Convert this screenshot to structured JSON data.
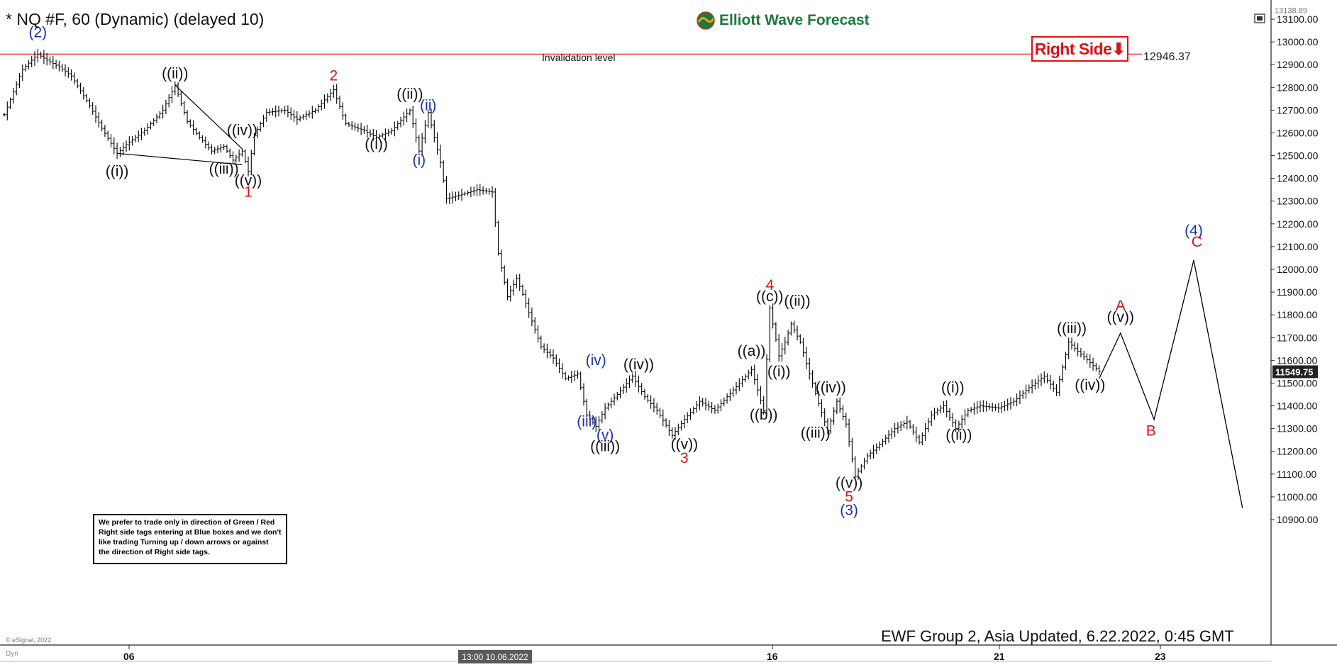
{
  "header": {
    "title": "* NQ #F, 60 (Dynamic) (delayed 10)",
    "logo_text": "Elliott Wave Forecast",
    "right_side_label": "Right Side⬇",
    "invalidation_label": "Invalidation level",
    "invalidation_value": "12946.37",
    "footer": "EWF Group 2, Asia Updated, 6.22.2022, 0:45 GMT",
    "esignal": "© eSignal, 2022",
    "dyn": "Dyn",
    "date_badge": "13:00 10.06.2022",
    "note": "We prefer to trade only in direction of Green / Red Right side tags entering at Blue boxes and we don't like trading Turning up / down arrows or against the direction of Right side tags."
  },
  "colors": {
    "background": "#ffffff",
    "bars": "#000000",
    "invalidation_line": "#e01010",
    "wave_black": "#111111",
    "wave_red": "#e01010",
    "wave_blue": "#1a2fb0",
    "logo_green": "#1a7a3a"
  },
  "chart_data": {
    "type": "bar",
    "y_axis": {
      "ticks": [
        13100,
        13000,
        12900,
        12800,
        12700,
        12600,
        12500,
        12400,
        12300,
        12200,
        12100,
        12000,
        11900,
        11800,
        11700,
        11600,
        11500,
        11400,
        11300,
        11200,
        11100,
        11000,
        10900
      ],
      "top_label": "13138.89",
      "last_price": "11549.75",
      "ylim": [
        10860,
        13160
      ]
    },
    "x_axis": {
      "ticks": [
        "06",
        "16",
        "21",
        "23"
      ]
    },
    "invalidation_level": 12946.37,
    "price_path": [
      [
        0,
        12680
      ],
      [
        6,
        12880
      ],
      [
        11,
        12946
      ],
      [
        14,
        12920
      ],
      [
        18,
        12890
      ],
      [
        22,
        12850
      ],
      [
        28,
        12720
      ],
      [
        32,
        12620
      ],
      [
        37,
        12510
      ],
      [
        41,
        12560
      ],
      [
        46,
        12610
      ],
      [
        52,
        12700
      ],
      [
        56,
        12810
      ],
      [
        60,
        12650
      ],
      [
        64,
        12580
      ],
      [
        68,
        12520
      ],
      [
        72,
        12540
      ],
      [
        75,
        12480
      ],
      [
        78,
        12520
      ],
      [
        80,
        12430
      ],
      [
        82,
        12590
      ],
      [
        86,
        12690
      ],
      [
        92,
        12700
      ],
      [
        96,
        12660
      ],
      [
        102,
        12700
      ],
      [
        108,
        12790
      ],
      [
        112,
        12640
      ],
      [
        118,
        12610
      ],
      [
        122,
        12580
      ],
      [
        127,
        12610
      ],
      [
        133,
        12700
      ],
      [
        136,
        12520
      ],
      [
        139,
        12690
      ],
      [
        143,
        12470
      ],
      [
        145,
        12310
      ],
      [
        150,
        12330
      ],
      [
        155,
        12350
      ],
      [
        160,
        12340
      ],
      [
        162,
        12070
      ],
      [
        165,
        11880
      ],
      [
        168,
        11960
      ],
      [
        170,
        11890
      ],
      [
        172,
        11810
      ],
      [
        176,
        11660
      ],
      [
        180,
        11610
      ],
      [
        184,
        11520
      ],
      [
        188,
        11540
      ],
      [
        191,
        11360
      ],
      [
        194,
        11310
      ],
      [
        197,
        11390
      ],
      [
        201,
        11450
      ],
      [
        206,
        11530
      ],
      [
        210,
        11440
      ],
      [
        214,
        11380
      ],
      [
        219,
        11270
      ],
      [
        223,
        11340
      ],
      [
        228,
        11420
      ],
      [
        233,
        11380
      ],
      [
        239,
        11470
      ],
      [
        245,
        11560
      ],
      [
        249,
        11380
      ],
      [
        251,
        11830
      ],
      [
        254,
        11620
      ],
      [
        256,
        11680
      ],
      [
        258,
        11760
      ],
      [
        261,
        11680
      ],
      [
        264,
        11540
      ],
      [
        267,
        11410
      ],
      [
        270,
        11290
      ],
      [
        273,
        11420
      ],
      [
        276,
        11320
      ],
      [
        279,
        11090
      ],
      [
        283,
        11180
      ],
      [
        287,
        11230
      ],
      [
        292,
        11300
      ],
      [
        296,
        11330
      ],
      [
        300,
        11240
      ],
      [
        304,
        11360
      ],
      [
        308,
        11400
      ],
      [
        312,
        11300
      ],
      [
        316,
        11380
      ],
      [
        320,
        11400
      ],
      [
        326,
        11390
      ],
      [
        331,
        11420
      ],
      [
        336,
        11480
      ],
      [
        341,
        11530
      ],
      [
        345,
        11460
      ],
      [
        349,
        11680
      ],
      [
        352,
        11640
      ],
      [
        356,
        11590
      ],
      [
        359,
        11550
      ]
    ],
    "projection_path": [
      [
        359,
        11520
      ],
      [
        366,
        11720
      ],
      [
        377,
        11340
      ],
      [
        390,
        12040
      ],
      [
        406,
        10950
      ]
    ],
    "wave_labels": [
      {
        "text": "(2)",
        "t": 11,
        "v": 13020,
        "color": "blue"
      },
      {
        "text": "((i))",
        "t": 37,
        "v": 12410,
        "color": "black"
      },
      {
        "text": "((ii))",
        "t": 56,
        "v": 12840,
        "color": "black"
      },
      {
        "text": "((iii))",
        "t": 72,
        "v": 12420,
        "color": "black"
      },
      {
        "text": "((iv))",
        "t": 78,
        "v": 12590,
        "color": "black"
      },
      {
        "text": "((v))",
        "t": 80,
        "v": 12370,
        "color": "black"
      },
      {
        "text": "1",
        "t": 80,
        "v": 12320,
        "color": "red"
      },
      {
        "text": "2",
        "t": 108,
        "v": 12830,
        "color": "red"
      },
      {
        "text": "((i))",
        "t": 122,
        "v": 12530,
        "color": "black"
      },
      {
        "text": "((ii))",
        "t": 133,
        "v": 12750,
        "color": "black"
      },
      {
        "text": "(ii)",
        "t": 139,
        "v": 12700,
        "color": "blue"
      },
      {
        "text": "(i)",
        "t": 136,
        "v": 12460,
        "color": "blue"
      },
      {
        "text": "(iv)",
        "t": 194,
        "v": 11580,
        "color": "blue"
      },
      {
        "text": "(iii)",
        "t": 191,
        "v": 11310,
        "color": "blue"
      },
      {
        "text": "(v)",
        "t": 197,
        "v": 11250,
        "color": "blue"
      },
      {
        "text": "((iii))",
        "t": 197,
        "v": 11200,
        "color": "black"
      },
      {
        "text": "((iv))",
        "t": 208,
        "v": 11560,
        "color": "black"
      },
      {
        "text": "((v))",
        "t": 223,
        "v": 11210,
        "color": "black"
      },
      {
        "text": "3",
        "t": 223,
        "v": 11150,
        "color": "red"
      },
      {
        "text": "4",
        "t": 251,
        "v": 11910,
        "color": "red"
      },
      {
        "text": "((c))",
        "t": 251,
        "v": 11860,
        "color": "black"
      },
      {
        "text": "((ii))",
        "t": 260,
        "v": 11840,
        "color": "black"
      },
      {
        "text": "((a))",
        "t": 245,
        "v": 11620,
        "color": "black"
      },
      {
        "text": "((i))",
        "t": 254,
        "v": 11530,
        "color": "black"
      },
      {
        "text": "((b))",
        "t": 249,
        "v": 11340,
        "color": "black"
      },
      {
        "text": "((iv))",
        "t": 271,
        "v": 11460,
        "color": "black"
      },
      {
        "text": "((iii))",
        "t": 266,
        "v": 11260,
        "color": "black"
      },
      {
        "text": "((v))",
        "t": 277,
        "v": 11040,
        "color": "black"
      },
      {
        "text": "5",
        "t": 277,
        "v": 10980,
        "color": "red"
      },
      {
        "text": "(3)",
        "t": 277,
        "v": 10920,
        "color": "blue"
      },
      {
        "text": "((i))",
        "t": 311,
        "v": 11460,
        "color": "black"
      },
      {
        "text": "((ii))",
        "t": 313,
        "v": 11250,
        "color": "black"
      },
      {
        "text": "((iii))",
        "t": 350,
        "v": 11720,
        "color": "black"
      },
      {
        "text": "((iv))",
        "t": 356,
        "v": 11470,
        "color": "black"
      },
      {
        "text": "A",
        "t": 366,
        "v": 11820,
        "color": "red"
      },
      {
        "text": "((v))",
        "t": 366,
        "v": 11770,
        "color": "black"
      },
      {
        "text": "B",
        "t": 376,
        "v": 11270,
        "color": "red"
      },
      {
        "text": "(4)",
        "t": 390,
        "v": 12150,
        "color": "blue"
      },
      {
        "text": "C",
        "t": 391,
        "v": 12100,
        "color": "red"
      }
    ]
  }
}
